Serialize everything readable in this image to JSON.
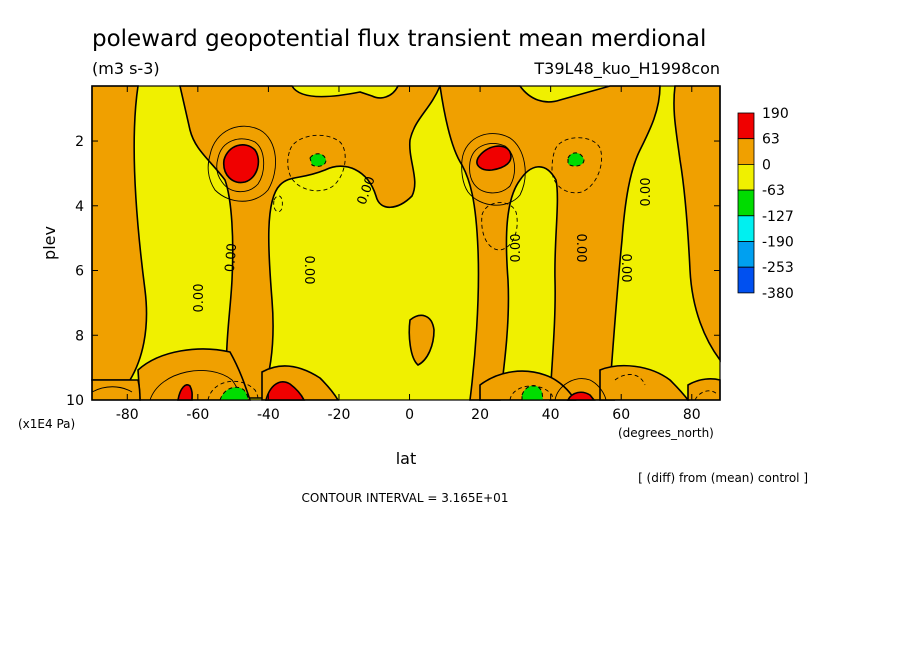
{
  "chart_data": {
    "type": "heatmap",
    "title": "poleward geopotential flux transient mean merdional",
    "units": "(m3 s-3)",
    "run_label": "T39L48_kuo_H1998con",
    "xlabel": "lat",
    "x_units": "(degrees_north)",
    "ylabel": "plev",
    "y_units": "(x1E4 Pa)",
    "xlim": [
      -90,
      88
    ],
    "ylim": [
      10,
      0.3
    ],
    "x_ticks": [
      "-80",
      "-60",
      "-40",
      "-20",
      "0",
      "20",
      "40",
      "60",
      "80"
    ],
    "x_tick_values": [
      -80,
      -60,
      -40,
      -20,
      0,
      20,
      40,
      60,
      80
    ],
    "y_ticks": [
      "2",
      "4",
      "6",
      "8",
      "10"
    ],
    "y_tick_values": [
      2,
      4,
      6,
      8,
      10
    ],
    "contour_interval_text": "CONTOUR INTERVAL = 3.165E+01",
    "diff_note": "[ (diff) from (mean) control ]",
    "zero_contour_label": "0.00",
    "legend": {
      "labels": [
        "190",
        "63",
        "0",
        "-63",
        "-127",
        "-190",
        "-253",
        "-380"
      ],
      "colors": [
        "#f00000",
        "#f0a000",
        "#f0f000",
        "#00dc00",
        "#00f0f0",
        "#00a0f0",
        "#0050f0"
      ]
    },
    "colors": {
      "positive_low": "#f0a000",
      "positive_high": "#f00000",
      "negative_low": "#f0f000",
      "negative_mid": "#00dc00"
    }
  }
}
